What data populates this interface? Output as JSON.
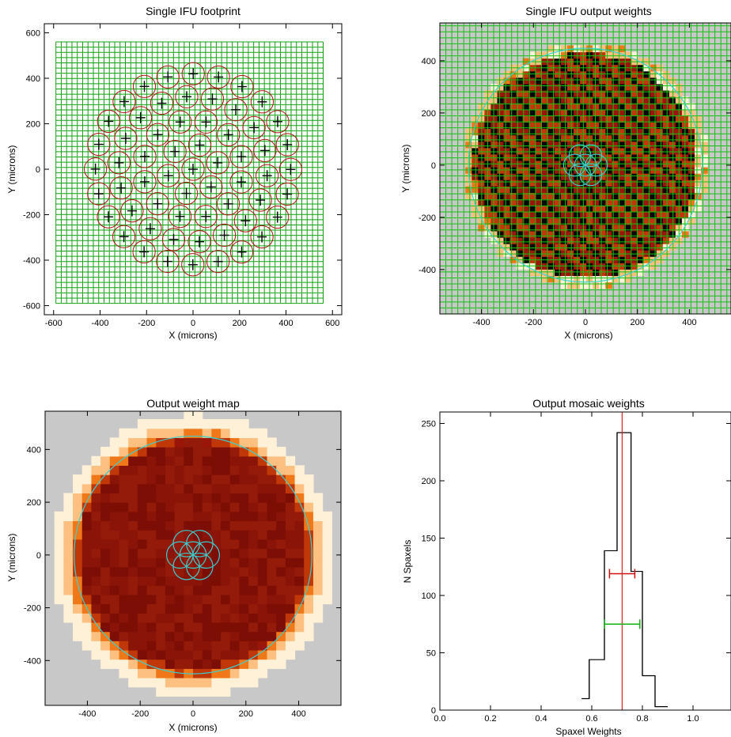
{
  "chart_data": [
    {
      "type": "scatter",
      "title": "Single IFU footprint",
      "xlabel": "X (microns)",
      "ylabel": "Y (microns)",
      "xlim": [
        -640,
        640
      ],
      "ylim": [
        -640,
        640
      ],
      "xticks": [
        "-600",
        "-400",
        "-200",
        "0",
        "200",
        "400",
        "600"
      ],
      "yticks": [
        "-600",
        "-400",
        "-200",
        "0",
        "200",
        "400",
        "600"
      ],
      "grid": {
        "color": "#10a010",
        "range": [
          -590,
          560
        ],
        "step": 23
      },
      "fiber_color": "#b01010",
      "fiber_radius": 48,
      "fiber_rings": [
        {
          "r": 0,
          "n": 1
        },
        {
          "r": 110,
          "n": 6
        },
        {
          "r": 215,
          "n": 12
        },
        {
          "r": 320,
          "n": 18
        },
        {
          "r": 420,
          "n": 24
        }
      ]
    },
    {
      "type": "heatmap",
      "title": "Single IFU output weights",
      "xlabel": "X (microns)",
      "ylabel": "Y (microns)",
      "xlim": [
        -560,
        560
      ],
      "ylim": [
        -570,
        545
      ],
      "xticks": [
        "-400",
        "-200",
        "0",
        "200",
        "400"
      ],
      "yticks": [
        "-400",
        "-200",
        "0",
        "200",
        "400"
      ],
      "background": "#c8c8c8",
      "circle": {
        "r": 450,
        "color": "#38d0d0"
      },
      "dither_color": "#38d0d0"
    },
    {
      "type": "heatmap",
      "title": "Output weight map",
      "xlabel": "X (microns)",
      "ylabel": "Y (microns)",
      "xlim": [
        -560,
        560
      ],
      "ylim": [
        -570,
        545
      ],
      "xticks": [
        "-400",
        "-200",
        "0",
        "200",
        "400"
      ],
      "yticks": [
        "-400",
        "-200",
        "0",
        "200",
        "400"
      ],
      "background": "#c8c8c8",
      "circle": {
        "r": 450,
        "color": "#38d0d0"
      },
      "dither_color": "#38d0d0"
    },
    {
      "type": "histogram",
      "title": "Output mosaic weights",
      "xlabel": "Spaxel Weights",
      "ylabel": "N Spaxels",
      "xlim": [
        0,
        1.15
      ],
      "ylim": [
        0,
        260
      ],
      "xticks": [
        "0.0",
        "0.2",
        "0.4",
        "0.6",
        "0.8",
        "1.0"
      ],
      "yticks": [
        "0",
        "50",
        "100",
        "150",
        "200",
        "250"
      ],
      "bins": [
        {
          "x0": 0.56,
          "x1": 0.59,
          "count": 10
        },
        {
          "x0": 0.59,
          "x1": 0.65,
          "count": 44
        },
        {
          "x0": 0.65,
          "x1": 0.7,
          "count": 139
        },
        {
          "x0": 0.7,
          "x1": 0.755,
          "count": 242
        },
        {
          "x0": 0.755,
          "x1": 0.8,
          "count": 121
        },
        {
          "x0": 0.8,
          "x1": 0.85,
          "count": 30
        },
        {
          "x0": 0.85,
          "x1": 0.9,
          "count": 3
        }
      ],
      "median_line": {
        "x": 0.72,
        "color": "#e02020"
      },
      "error_bars": [
        {
          "y": 119,
          "x0": 0.67,
          "x1": 0.77,
          "color": "#d01010"
        },
        {
          "y": 75,
          "x0": 0.65,
          "x1": 0.79,
          "color": "#10b010"
        }
      ]
    }
  ]
}
